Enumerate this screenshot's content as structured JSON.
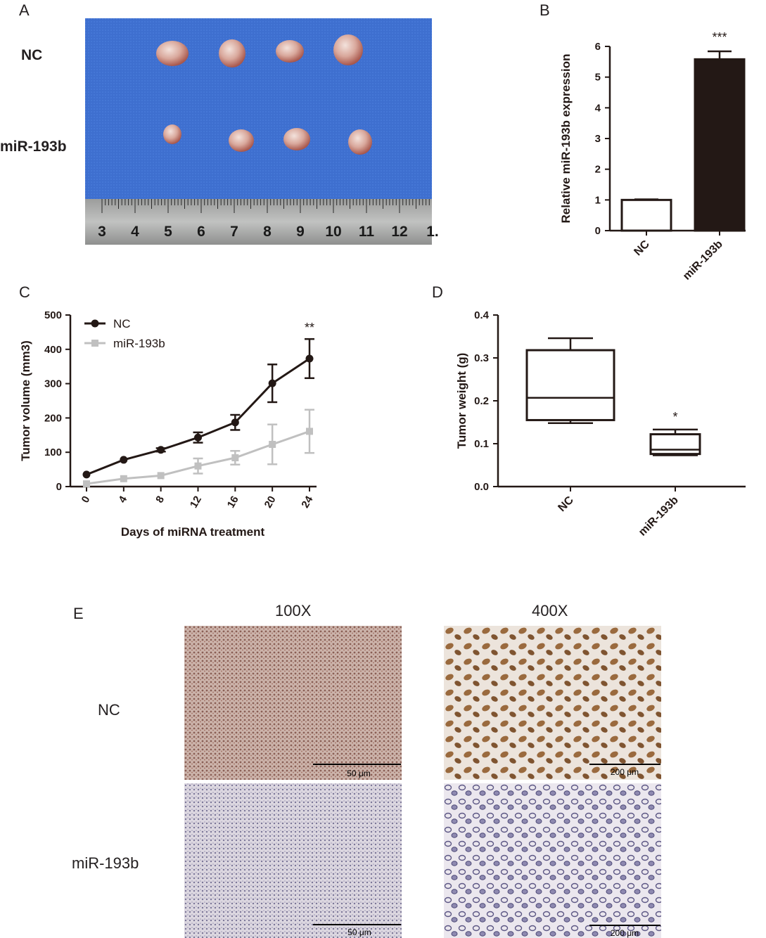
{
  "panels": {
    "a": {
      "letter": "A",
      "row_labels": [
        "NC",
        "miR-193b"
      ],
      "ruler_numbers": [
        "3",
        "4",
        "5",
        "6",
        "7",
        "8",
        "9",
        "10",
        "11",
        "12",
        "1."
      ],
      "colors": {
        "cloth": "#3d6fd0",
        "tumor": "#d7a9a0",
        "ruler": "#a9aaa9"
      }
    },
    "b": {
      "letter": "B",
      "significance": "***",
      "colors": {
        "nc_bar": "#ffffff",
        "mir_bar": "#231815"
      }
    },
    "c": {
      "letter": "C",
      "significance": "**",
      "colors": {
        "nc": "#231815",
        "mir": "#c0c0c0"
      }
    },
    "d": {
      "letter": "D",
      "significance": "*"
    },
    "e": {
      "letter": "E",
      "column_labels": [
        "100X",
        "400X"
      ],
      "row_labels": [
        "NC",
        "miR-193b"
      ],
      "scale_labels": {
        "low": "50 μm",
        "high": "200 μm"
      },
      "colors": {
        "nc_low": "#b59a92",
        "nc_high": "#d4b89a",
        "mir_low": "#cdc7d6",
        "mir_high": "#cbc5d8"
      }
    }
  },
  "chart_data": [
    {
      "id": "B",
      "type": "bar",
      "categories": [
        "NC",
        "miR-193b"
      ],
      "values": [
        1.0,
        5.58
      ],
      "errors": [
        0.02,
        0.26
      ],
      "ylabel": "Relative miR-193b expression",
      "xlabel": "",
      "ylim": [
        0,
        6
      ],
      "yticks": [
        "0",
        "1",
        "2",
        "3",
        "4",
        "5",
        "6"
      ],
      "legend": "none",
      "grid": false
    },
    {
      "id": "C",
      "type": "line",
      "x": [
        0,
        4,
        8,
        12,
        16,
        20,
        24
      ],
      "xticks": [
        "0",
        "4",
        "8",
        "12",
        "16",
        "20",
        "24"
      ],
      "series": [
        {
          "name": "NC",
          "values": [
            35,
            78,
            107,
            143,
            187,
            301,
            373
          ],
          "errors": [
            3,
            4,
            5,
            15,
            22,
            55,
            57
          ]
        },
        {
          "name": "miR-193b",
          "values": [
            8,
            23,
            32,
            60,
            84,
            123,
            161
          ],
          "errors": [
            2,
            3,
            4,
            22,
            20,
            58,
            63
          ]
        }
      ],
      "xlabel": "Days of miRNA treatment",
      "ylabel": "Tumor volume (mm3)",
      "ylim": [
        0,
        500
      ],
      "yticks": [
        "0",
        "100",
        "200",
        "300",
        "400",
        "500"
      ],
      "legend": "top-left",
      "grid": false
    },
    {
      "id": "D",
      "type": "box",
      "categories": [
        "NC",
        "miR-193b"
      ],
      "boxes": [
        {
          "min": 0.148,
          "q1": 0.155,
          "median": 0.207,
          "q3": 0.318,
          "max": 0.346
        },
        {
          "min": 0.073,
          "q1": 0.076,
          "median": 0.086,
          "q3": 0.122,
          "max": 0.133
        }
      ],
      "ylabel": "Tumor weight (g)",
      "xlabel": "",
      "ylim": [
        0,
        0.4
      ],
      "yticks": [
        "0.0",
        "0.1",
        "0.2",
        "0.3",
        "0.4"
      ],
      "legend": "none",
      "grid": false
    }
  ]
}
